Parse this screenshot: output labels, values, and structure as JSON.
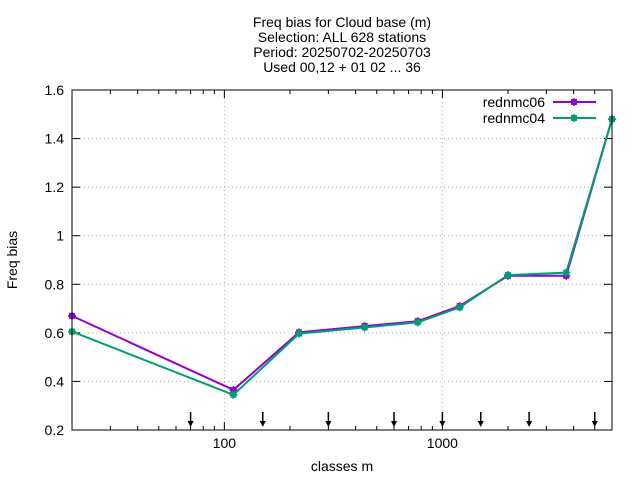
{
  "chart_data": {
    "type": "line",
    "title_lines": [
      "Freq bias  for Cloud base (m)",
      "Selection: ALL    628 stations",
      "Period: 20250702-20250703",
      "Used 00,12 + 01 02 ... 36"
    ],
    "xlabel": "classes m",
    "ylabel": "Freq bias",
    "x_scale": "log",
    "xlim": [
      20,
      6000
    ],
    "ylim": [
      0.2,
      1.6
    ],
    "x_ticks": [
      100,
      1000
    ],
    "x_tick_labels": [
      "100",
      "1000"
    ],
    "y_ticks": [
      0.2,
      0.4,
      0.6,
      0.8,
      1.0,
      1.2,
      1.4,
      1.6
    ],
    "y_tick_labels": [
      "0.2",
      "0.4",
      "0.6",
      "0.8",
      "1",
      "1.2",
      "1.4",
      "1.6"
    ],
    "grid": true,
    "legend_position": "top-right",
    "series": [
      {
        "name": "rednmc06",
        "color": "#9400d3",
        "x": [
          20,
          110,
          220,
          440,
          770,
          1200,
          2000,
          3700,
          6000
        ],
        "y": [
          0.67,
          0.365,
          0.602,
          0.628,
          0.648,
          0.71,
          0.835,
          0.835,
          1.48
        ]
      },
      {
        "name": "rednmc04",
        "color": "#009e73",
        "x": [
          20,
          110,
          220,
          440,
          770,
          1200,
          2000,
          3700,
          6000
        ],
        "y": [
          0.605,
          0.345,
          0.597,
          0.622,
          0.643,
          0.705,
          0.838,
          0.848,
          1.48
        ]
      }
    ],
    "arrow_markers_x": [
      70,
      150,
      300,
      600,
      1000,
      1500,
      2500,
      5000
    ]
  }
}
